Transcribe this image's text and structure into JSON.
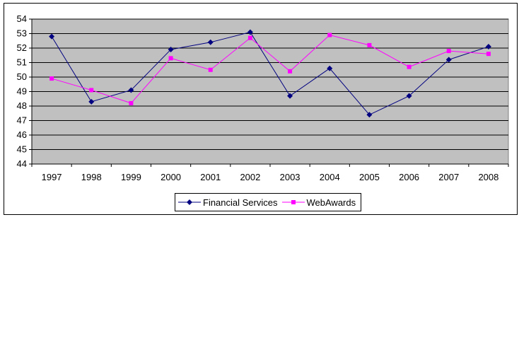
{
  "chart_data": {
    "type": "line",
    "title": "",
    "xlabel": "",
    "ylabel": "",
    "categories": [
      "1997",
      "1998",
      "1999",
      "2000",
      "2001",
      "2002",
      "2003",
      "2004",
      "2005",
      "2006",
      "2007",
      "2008"
    ],
    "ylim": [
      44,
      54
    ],
    "yticks": [
      "44",
      "45",
      "46",
      "47",
      "48",
      "49",
      "50",
      "51",
      "52",
      "53",
      "54"
    ],
    "grid": "horizontal",
    "plot_background": "#c0c0c0",
    "legend_position": "bottom",
    "series": [
      {
        "name": "Financial Services",
        "color": "#000080",
        "marker": "diamond",
        "values": [
          52.8,
          48.3,
          49.1,
          51.9,
          52.4,
          53.1,
          48.7,
          50.6,
          47.4,
          48.7,
          51.2,
          52.1
        ]
      },
      {
        "name": "WebAwards",
        "color": "#ff00ff",
        "marker": "square",
        "values": [
          49.9,
          49.1,
          48.2,
          51.3,
          50.5,
          52.7,
          50.4,
          52.9,
          52.2,
          50.7,
          51.8,
          51.6
        ]
      }
    ]
  }
}
